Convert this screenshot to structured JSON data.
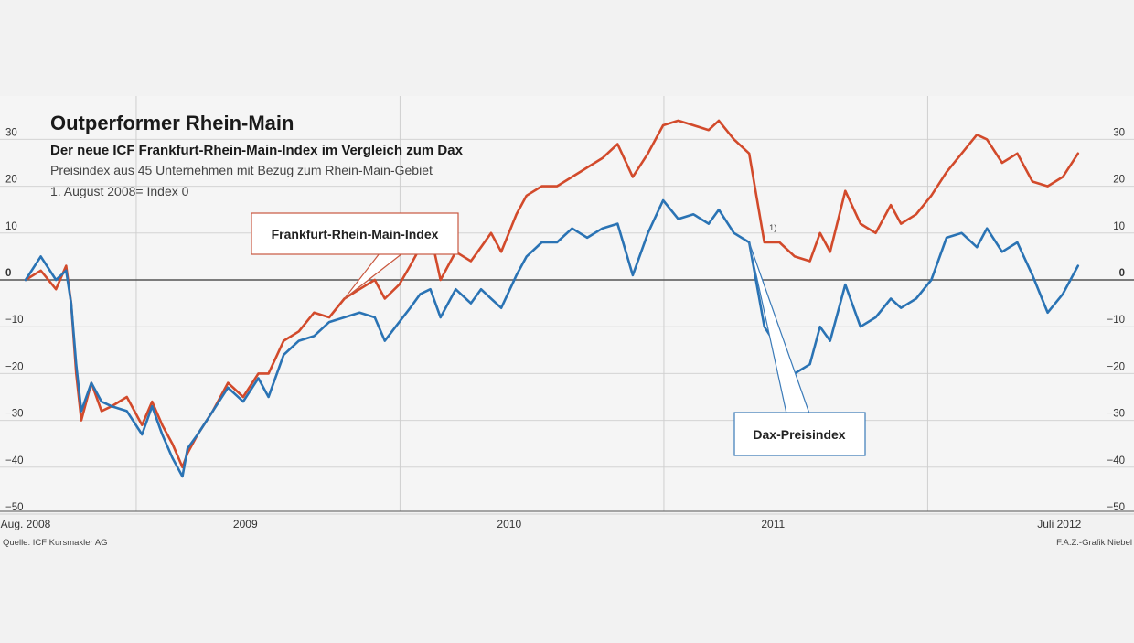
{
  "chart_data": {
    "type": "line",
    "title": "Outperformer Rhein-Main",
    "subtitle": "Der neue ICF Frankfurt-Rhein-Main-Index im Vergleich zum Dax",
    "notes": [
      "Preisindex aus 45 Unternehmen mit Bezug zum Rhein-Main-Gebiet",
      "1. August 2008= Index 0"
    ],
    "ylim": [
      -50,
      35
    ],
    "yticks": [
      30,
      20,
      10,
      0,
      -10,
      -20,
      -30,
      -40,
      -50
    ],
    "ytick_labels": [
      "30",
      "20",
      "10",
      "0",
      "−10",
      "−20",
      "−30",
      "−40",
      "−50"
    ],
    "xlim": [
      "2008-08-01",
      "2012-07-31"
    ],
    "xtick_labels": [
      {
        "date": "2008-08-01",
        "label": "Aug. 2008"
      },
      {
        "date": "2009-06-01",
        "label": "2009"
      },
      {
        "date": "2010-06-01",
        "label": "2010"
      },
      {
        "date": "2011-06-01",
        "label": "2011"
      },
      {
        "date": "2012-07-01",
        "label": "Juli 2012"
      }
    ],
    "year_dividers": [
      "2009-01-01",
      "2010-01-01",
      "2011-01-01",
      "2012-01-01"
    ],
    "grid": true,
    "footnote_mark": "1)",
    "series": [
      {
        "name": "Frankfurt-Rhein-Main-Index",
        "color": "#d24a2b",
        "x": [
          "2008-08-01",
          "2008-08-22",
          "2008-09-12",
          "2008-09-26",
          "2008-10-03",
          "2008-10-10",
          "2008-10-17",
          "2008-10-31",
          "2008-11-14",
          "2008-11-28",
          "2008-12-19",
          "2009-01-09",
          "2009-01-23",
          "2009-02-06",
          "2009-02-20",
          "2009-03-06",
          "2009-03-13",
          "2009-03-27",
          "2009-04-17",
          "2009-05-08",
          "2009-05-29",
          "2009-06-19",
          "2009-07-03",
          "2009-07-24",
          "2009-08-14",
          "2009-09-04",
          "2009-09-25",
          "2009-10-16",
          "2009-11-06",
          "2009-11-27",
          "2009-12-11",
          "2009-12-31",
          "2010-01-15",
          "2010-01-29",
          "2010-02-12",
          "2010-02-26",
          "2010-03-19",
          "2010-04-09",
          "2010-04-23",
          "2010-05-07",
          "2010-05-21",
          "2010-06-11",
          "2010-06-25",
          "2010-07-16",
          "2010-08-06",
          "2010-08-27",
          "2010-09-17",
          "2010-10-08",
          "2010-10-29",
          "2010-11-19",
          "2010-12-10",
          "2010-12-31",
          "2011-01-21",
          "2011-02-11",
          "2011-03-04",
          "2011-03-18",
          "2011-04-08",
          "2011-04-29",
          "2011-05-20",
          "2011-06-10",
          "2011-07-01",
          "2011-07-22",
          "2011-08-05",
          "2011-08-19",
          "2011-09-09",
          "2011-09-30",
          "2011-10-21",
          "2011-11-11",
          "2011-11-25",
          "2011-12-16",
          "2012-01-06",
          "2012-01-27",
          "2012-02-17",
          "2012-03-09",
          "2012-03-23",
          "2012-04-13",
          "2012-05-04",
          "2012-05-25",
          "2012-06-15",
          "2012-07-06",
          "2012-07-27"
        ],
        "values": [
          0,
          2,
          -2,
          3,
          -5,
          -20,
          -30,
          -22,
          -28,
          -27,
          -25,
          -31,
          -26,
          -31,
          -35,
          -40,
          -37,
          -33,
          -28,
          -22,
          -25,
          -20,
          -20,
          -13,
          -11,
          -7,
          -8,
          -4,
          -2,
          0,
          -4,
          -1,
          3,
          7,
          10,
          0,
          6,
          4,
          7,
          10,
          6,
          14,
          18,
          20,
          20,
          22,
          24,
          26,
          29,
          22,
          27,
          33,
          34,
          33,
          32,
          34,
          30,
          27,
          8,
          8,
          5,
          4,
          10,
          6,
          19,
          12,
          10,
          16,
          12,
          14,
          18,
          23,
          27,
          31,
          30,
          25,
          27,
          21,
          20,
          22,
          27
        ]
      },
      {
        "name": "Dax-Preisindex",
        "color": "#2a73b4",
        "x": [
          "2008-08-01",
          "2008-08-22",
          "2008-09-12",
          "2008-09-26",
          "2008-10-03",
          "2008-10-10",
          "2008-10-17",
          "2008-10-31",
          "2008-11-14",
          "2008-11-28",
          "2008-12-19",
          "2009-01-09",
          "2009-01-23",
          "2009-02-06",
          "2009-02-20",
          "2009-03-06",
          "2009-03-13",
          "2009-03-27",
          "2009-04-17",
          "2009-05-08",
          "2009-05-29",
          "2009-06-19",
          "2009-07-03",
          "2009-07-24",
          "2009-08-14",
          "2009-09-04",
          "2009-09-25",
          "2009-10-16",
          "2009-11-06",
          "2009-11-27",
          "2009-12-11",
          "2009-12-31",
          "2010-01-15",
          "2010-01-29",
          "2010-02-12",
          "2010-02-26",
          "2010-03-19",
          "2010-04-09",
          "2010-04-23",
          "2010-05-07",
          "2010-05-21",
          "2010-06-11",
          "2010-06-25",
          "2010-07-16",
          "2010-08-06",
          "2010-08-27",
          "2010-09-17",
          "2010-10-08",
          "2010-10-29",
          "2010-11-19",
          "2010-12-10",
          "2010-12-31",
          "2011-01-21",
          "2011-02-11",
          "2011-03-04",
          "2011-03-18",
          "2011-04-08",
          "2011-04-29",
          "2011-05-20",
          "2011-06-10",
          "2011-07-01",
          "2011-07-22",
          "2011-08-05",
          "2011-08-19",
          "2011-09-09",
          "2011-09-30",
          "2011-10-21",
          "2011-11-11",
          "2011-11-25",
          "2011-12-16",
          "2012-01-06",
          "2012-01-27",
          "2012-02-17",
          "2012-03-09",
          "2012-03-23",
          "2012-04-13",
          "2012-05-04",
          "2012-05-25",
          "2012-06-15",
          "2012-07-06",
          "2012-07-27"
        ],
        "values": [
          0,
          5,
          0,
          2,
          -5,
          -18,
          -28,
          -22,
          -26,
          -27,
          -28,
          -33,
          -27,
          -33,
          -38,
          -42,
          -36,
          -33,
          -28,
          -23,
          -26,
          -21,
          -25,
          -16,
          -13,
          -12,
          -9,
          -8,
          -7,
          -8,
          -13,
          -9,
          -6,
          -3,
          -2,
          -8,
          -2,
          -5,
          -2,
          -4,
          -6,
          1,
          5,
          8,
          8,
          11,
          9,
          11,
          12,
          1,
          10,
          17,
          13,
          14,
          12,
          15,
          10,
          8,
          -10,
          -15,
          -20,
          -18,
          -10,
          -13,
          -1,
          -10,
          -8,
          -4,
          -6,
          -4,
          0,
          9,
          10,
          7,
          11,
          6,
          8,
          1,
          -7,
          -3,
          3
        ]
      }
    ],
    "annotations": [
      {
        "text": "Frankfurt-Rhein-Main-Index",
        "series": 0,
        "date": "2009-10-16"
      },
      {
        "text": "Dax-Preisindex",
        "series": 1,
        "date": "2011-04-29"
      }
    ]
  },
  "footer": {
    "source": "Quelle: ICF Kursmakler AG",
    "credit": "F.A.Z.-Grafik Niebel"
  }
}
